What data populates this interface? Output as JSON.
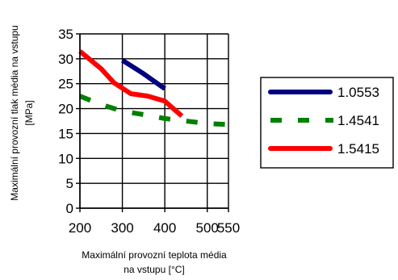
{
  "chart_data": {
    "type": "line",
    "title": "",
    "xlabel": [
      "Maximální provozní teplota média",
      "na vstupu [°C]"
    ],
    "ylabel": [
      "Maximální provozní tlak média na vstupu",
      "[MPa]"
    ],
    "xlim": [
      200,
      550
    ],
    "ylim": [
      0,
      35
    ],
    "xticks": [
      "200",
      "300",
      "400",
      "500",
      "550"
    ],
    "yticks": [
      "0",
      "5",
      "10",
      "15",
      "20",
      "25",
      "30",
      "35"
    ],
    "grid": true,
    "legend_position": "right",
    "series": [
      {
        "name": "1.0553",
        "color": "#000080",
        "style": "solid",
        "points": [
          [
            300,
            29.7
          ],
          [
            350,
            27.0
          ],
          [
            400,
            24.0
          ]
        ]
      },
      {
        "name": "1.4541",
        "color": "#008000",
        "style": "dashed",
        "points": [
          [
            200,
            22.5
          ],
          [
            250,
            20.8
          ],
          [
            300,
            19.5
          ],
          [
            350,
            18.8
          ],
          [
            400,
            18.0
          ],
          [
            450,
            17.5
          ],
          [
            500,
            17.0
          ],
          [
            550,
            16.8
          ]
        ]
      },
      {
        "name": "1.5415",
        "color": "#ff0000",
        "style": "solid",
        "points": [
          [
            200,
            31.5
          ],
          [
            250,
            28.0
          ],
          [
            280,
            25.2
          ],
          [
            320,
            23.0
          ],
          [
            360,
            22.5
          ],
          [
            400,
            21.5
          ],
          [
            420,
            20.0
          ],
          [
            440,
            18.5
          ]
        ]
      }
    ]
  }
}
